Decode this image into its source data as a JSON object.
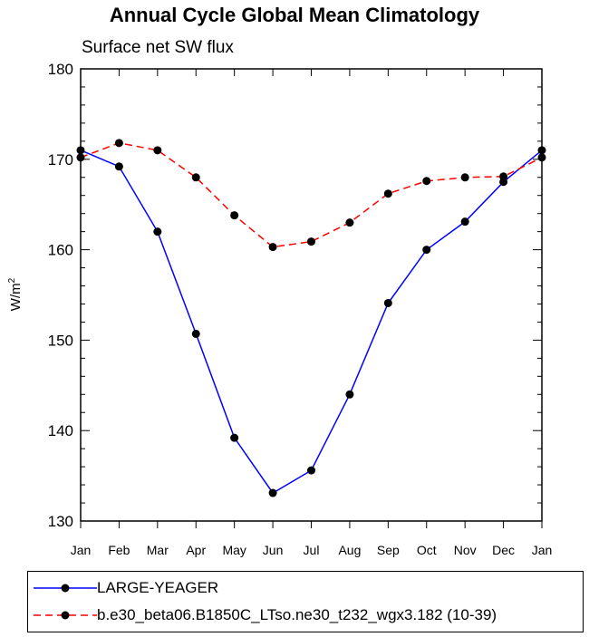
{
  "chart_data": {
    "type": "line",
    "title": "Annual Cycle Global Mean Climatology",
    "subtitle": "Surface net SW flux",
    "xlabel": "",
    "ylabel": "W/m",
    "ylabel_sup": "2",
    "ylim": [
      130,
      180
    ],
    "yticks": [
      130,
      140,
      150,
      160,
      170,
      180
    ],
    "categories": [
      "Jan",
      "Feb",
      "Mar",
      "Apr",
      "May",
      "Jun",
      "Jul",
      "Aug",
      "Sep",
      "Oct",
      "Nov",
      "Dec",
      "Jan"
    ],
    "series": [
      {
        "name": "LARGE-YEAGER",
        "color": "#0000ff",
        "dash": "solid",
        "values": [
          171.0,
          169.2,
          162.0,
          150.7,
          139.2,
          133.1,
          135.6,
          144.0,
          154.1,
          160.0,
          163.1,
          167.5,
          171.0
        ]
      },
      {
        "name": "b.e30_beta06.B1850C_LTso.ne30_t232_wgx3.182 (10-39)",
        "color": "#ff0000",
        "dash": "dashed",
        "values": [
          170.2,
          171.8,
          171.0,
          168.0,
          163.8,
          160.3,
          160.9,
          163.0,
          166.2,
          167.6,
          168.0,
          168.1,
          170.2
        ]
      }
    ],
    "legend_position": "bottom"
  }
}
